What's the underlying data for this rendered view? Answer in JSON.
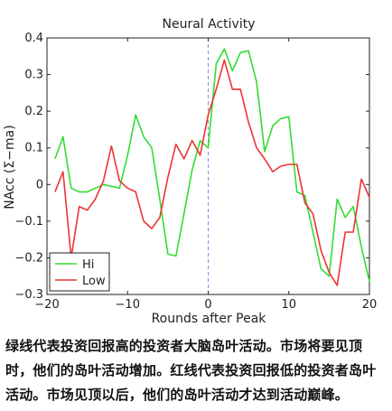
{
  "chart_data": {
    "type": "line",
    "title": "Neural Activity",
    "xlabel": "Rounds after Peak",
    "ylabel": "NAcc (Σ−ma)",
    "xlim": [
      -20,
      20
    ],
    "ylim": [
      -0.3,
      0.4
    ],
    "xticks": [
      -20,
      -10,
      0,
      10,
      20
    ],
    "yticks": [
      -0.3,
      -0.2,
      -0.1,
      0,
      0.1,
      0.2,
      0.3,
      0.4
    ],
    "xtick_labels": [
      "−20",
      "−10",
      "0",
      "10",
      "20"
    ],
    "ytick_labels": [
      "−0.3",
      "−0.2",
      "−0.1",
      "0",
      "0.1",
      "0.2",
      "0.3",
      "0.4"
    ],
    "grid": false,
    "legend_position": "bottom-left",
    "vline": 0,
    "x": [
      -19,
      -18,
      -17,
      -16,
      -15,
      -14,
      -13,
      -12,
      -11,
      -10,
      -9,
      -8,
      -7,
      -6,
      -5,
      -4,
      -3,
      -2,
      -1,
      0,
      1,
      2,
      3,
      4,
      5,
      6,
      7,
      8,
      9,
      10,
      11,
      12,
      13,
      14,
      15,
      16,
      17,
      18,
      19,
      20
    ],
    "series": [
      {
        "name": "Hi",
        "color": "#33dd33",
        "values": [
          0.07,
          0.13,
          -0.01,
          -0.02,
          -0.02,
          -0.01,
          0.0,
          -0.005,
          -0.01,
          0.08,
          0.19,
          0.13,
          0.1,
          -0.04,
          -0.19,
          -0.195,
          -0.08,
          0.04,
          0.12,
          0.1,
          0.33,
          0.37,
          0.31,
          0.36,
          0.365,
          0.28,
          0.09,
          0.16,
          0.18,
          0.185,
          -0.02,
          -0.03,
          -0.13,
          -0.23,
          -0.25,
          -0.04,
          -0.09,
          -0.06,
          -0.17,
          -0.265
        ]
      },
      {
        "name": "Low",
        "color": "#ee3333",
        "values": [
          -0.02,
          0.035,
          -0.2,
          -0.06,
          -0.07,
          -0.04,
          0.01,
          0.105,
          0.01,
          -0.01,
          -0.02,
          -0.1,
          -0.12,
          -0.09,
          0.02,
          0.11,
          0.07,
          0.12,
          0.08,
          0.19,
          0.26,
          0.34,
          0.26,
          0.26,
          0.17,
          0.1,
          0.07,
          0.035,
          0.05,
          0.055,
          0.055,
          -0.05,
          -0.08,
          -0.18,
          -0.24,
          -0.275,
          -0.13,
          -0.13,
          0.015,
          -0.035
        ]
      }
    ]
  },
  "caption": {
    "text": "绿线代表投资回报高的投资者大脑岛叶活动。市场将要见顶时，他们的岛叶活动增加。红线代表投资回报低的投资者岛叶活动。市场见顶以后，他们的岛叶活动才达到活动巅峰。"
  }
}
